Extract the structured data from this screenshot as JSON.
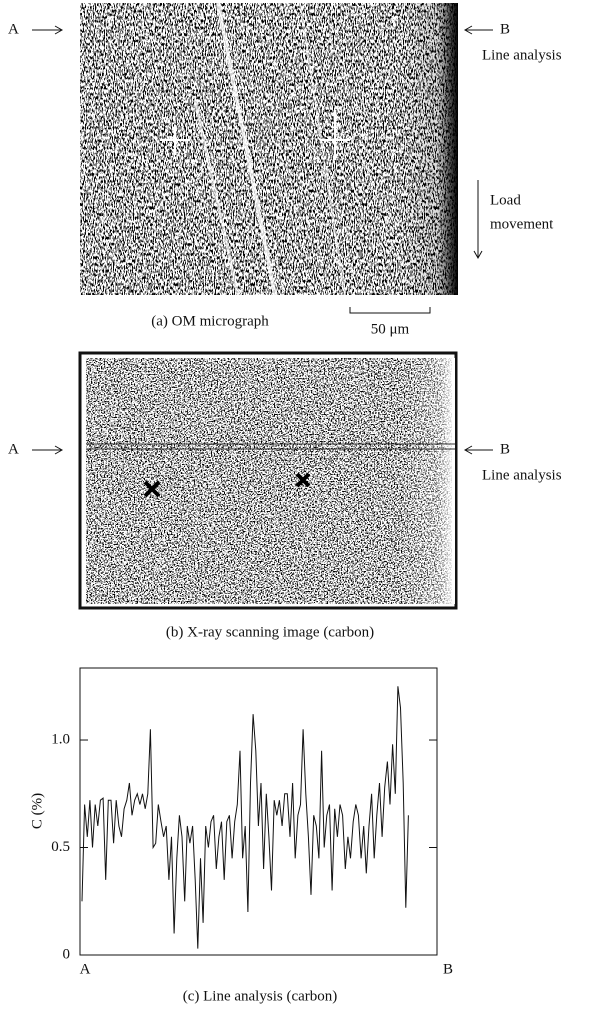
{
  "panel_a": {
    "left_marker": "A",
    "right_marker": "B",
    "right_note": "Line analysis",
    "load_note": [
      "Load",
      "movement"
    ],
    "caption": "(a) OM micrograph",
    "scale_bar": "50 μm"
  },
  "panel_b": {
    "left_marker": "A",
    "right_marker": "B",
    "right_note": "Line analysis",
    "caption": "(b) X-ray scanning image (carbon)"
  },
  "chart_data": {
    "type": "line",
    "caption": "(c) Line analysis (carbon)",
    "y_label": "C (%)",
    "x_end_labels": [
      "A",
      "B"
    ],
    "color": "#111111",
    "ylim": [
      0,
      1.335
    ],
    "yticks": [
      0,
      0.5,
      {
        "value": 1,
        "label": "1.0"
      }
    ],
    "values": [
      0.25,
      0.7,
      0.55,
      0.72,
      0.5,
      0.7,
      0.6,
      0.72,
      0.73,
      0.35,
      0.72,
      0.72,
      0.52,
      0.72,
      0.6,
      0.55,
      0.68,
      0.72,
      0.8,
      0.65,
      0.72,
      0.75,
      0.7,
      0.75,
      0.68,
      0.75,
      1.05,
      0.5,
      0.52,
      0.7,
      0.62,
      0.55,
      0.6,
      0.35,
      0.55,
      0.1,
      0.45,
      0.65,
      0.55,
      0.25,
      0.6,
      0.52,
      0.6,
      0.35,
      0.03,
      0.45,
      0.15,
      0.6,
      0.5,
      0.62,
      0.65,
      0.4,
      0.55,
      0.62,
      0.35,
      0.62,
      0.65,
      0.45,
      0.62,
      0.7,
      0.95,
      0.45,
      0.6,
      0.2,
      0.8,
      1.12,
      0.95,
      0.6,
      0.8,
      0.4,
      0.75,
      0.55,
      0.3,
      0.72,
      0.65,
      0.72,
      0.6,
      0.75,
      0.75,
      0.55,
      0.8,
      0.45,
      0.65,
      0.7,
      1.05,
      0.75,
      0.55,
      0.28,
      0.65,
      0.6,
      0.45,
      0.95,
      0.5,
      0.65,
      0.7,
      0.3,
      0.68,
      0.55,
      0.7,
      0.65,
      0.4,
      0.55,
      0.45,
      0.62,
      0.7,
      0.65,
      0.45,
      0.6,
      0.38,
      0.6,
      0.75,
      0.45,
      0.65,
      0.8,
      0.55,
      0.78,
      0.9,
      0.7,
      0.98,
      0.75,
      1.25,
      1.15,
      0.8,
      0.22,
      0.65
    ]
  }
}
